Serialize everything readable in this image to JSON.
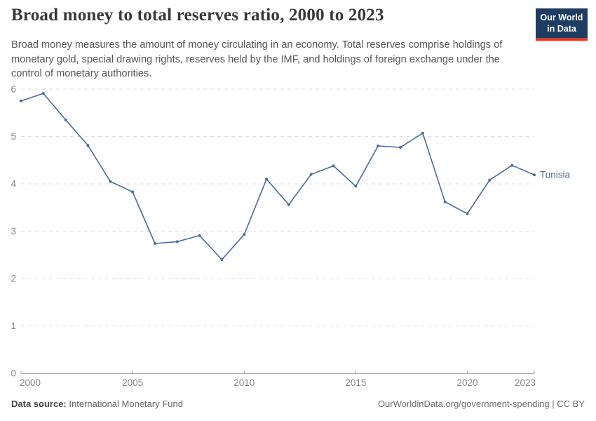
{
  "header": {
    "title": "Broad money to total reserves ratio, 2000 to 2023",
    "subtitle": "Broad money measures the amount of money circulating in an economy. Total reserves comprise holdings of monetary gold, special drawing rights, reserves held by the IMF, and holdings of foreign exchange under the control of monetary authorities.",
    "logo": {
      "line1": "Our World",
      "line2": "in Data",
      "bg_color": "#1d3d63",
      "accent_color": "#d13c32"
    }
  },
  "chart_data": {
    "type": "line",
    "title": "Broad money to total reserves ratio, 2000 to 2023",
    "xlabel": "",
    "ylabel": "",
    "x": [
      2000,
      2001,
      2002,
      2003,
      2004,
      2005,
      2006,
      2007,
      2008,
      2009,
      2010,
      2011,
      2012,
      2013,
      2014,
      2015,
      2016,
      2017,
      2018,
      2019,
      2020,
      2021,
      2022,
      2023
    ],
    "series": [
      {
        "name": "Tunisia",
        "color": "#4c6a9d",
        "values": [
          5.75,
          5.91,
          5.35,
          4.81,
          4.05,
          3.83,
          2.74,
          2.78,
          2.91,
          2.4,
          2.93,
          4.1,
          3.56,
          4.2,
          4.38,
          3.95,
          4.8,
          4.77,
          5.07,
          3.62,
          3.37,
          4.08,
          4.39,
          4.19
        ]
      }
    ],
    "xlim": [
      2000,
      2023
    ],
    "ylim": [
      0,
      6
    ],
    "yticks": [
      0,
      1,
      2,
      3,
      4,
      5,
      6
    ],
    "xticks": [
      2000,
      2005,
      2010,
      2015,
      2020,
      2023
    ],
    "grid": "horizontal-dashed",
    "legend_position": "end-of-line-label",
    "end_label": "Tunisia",
    "colors": {
      "grid": "#dddddd",
      "axis": "#a5a5a5",
      "tick_label": "#858585"
    }
  },
  "footer": {
    "source_label": "Data source:",
    "source_value": "International Monetary Fund",
    "link": "OurWorldinData.org/government-spending | CC BY"
  }
}
